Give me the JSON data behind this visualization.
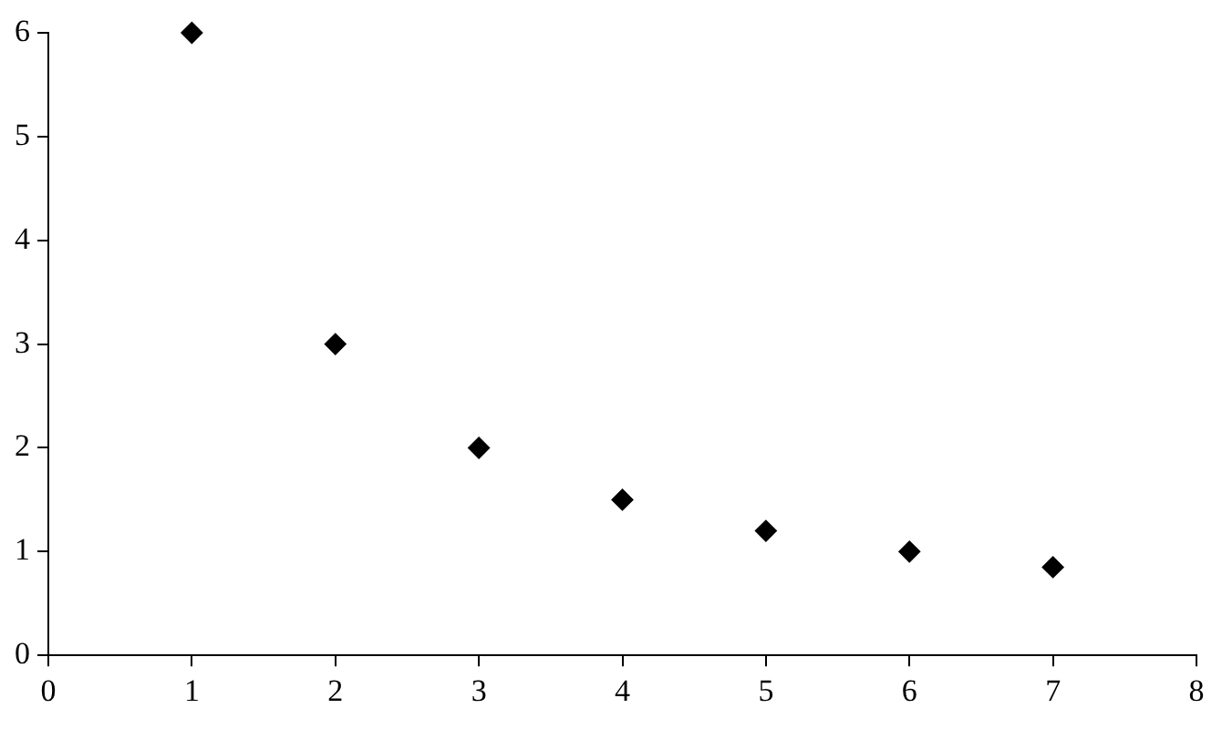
{
  "chart_data": {
    "type": "scatter",
    "x": [
      1,
      2,
      3,
      4,
      5,
      6,
      7
    ],
    "series": [
      {
        "color": "#000000",
        "values": [
          6,
          3,
          2,
          1.5,
          1.2,
          1,
          0.85
        ]
      }
    ],
    "xlim": [
      0,
      8
    ],
    "xticks": [
      0,
      1,
      2,
      3,
      4,
      5,
      6,
      7,
      8
    ],
    "ylim": [
      0,
      6
    ],
    "yticks": [
      0,
      1,
      2,
      3,
      4,
      5,
      6
    ],
    "marker": "diamond",
    "grid": false,
    "legend": false
  }
}
